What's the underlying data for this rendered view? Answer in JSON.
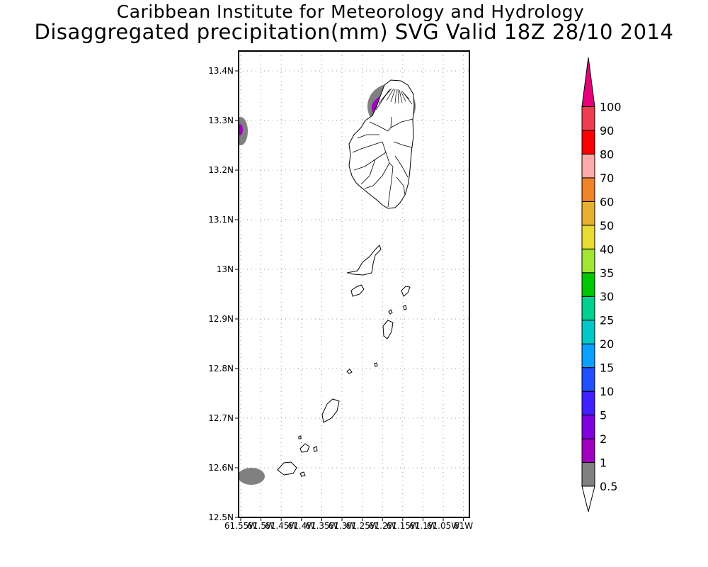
{
  "header": {
    "title": "Caribbean Institute for Meteorology and Hydrology",
    "subtitle": "Disaggregated precipitation(mm) SVG Valid 18Z 28/10 2014"
  },
  "map": {
    "lat_labels": [
      "13.4N",
      "13.3N",
      "13.2N",
      "13.1N",
      "13N",
      "12.9N",
      "12.8N",
      "12.7N",
      "12.6N",
      "12.5N"
    ],
    "lon_labels": [
      "61.55W",
      "61.5W",
      "61.45W",
      "61.4W",
      "61.35W",
      "61.3W",
      "61.25W",
      "61.2W",
      "61.15W",
      "61.1W",
      "61.05W",
      "61W"
    ]
  },
  "colorbar": {
    "levels": [
      "0.5",
      "1",
      "2",
      "5",
      "10",
      "15",
      "20",
      "25",
      "30",
      "35",
      "40",
      "50",
      "60",
      "70",
      "80",
      "90",
      "100"
    ],
    "colors": [
      "#808080",
      "#a000c0",
      "#8000e0",
      "#4020ff",
      "#2050ff",
      "#0aa0ff",
      "#00c8c8",
      "#00d090",
      "#00c800",
      "#a0e632",
      "#e6dc32",
      "#e6af2d",
      "#f08228",
      "#ffaaaa",
      "#ff0000",
      "#f03c50",
      "#e6007a"
    ],
    "under_color": "#ffffff",
    "over_color": "#e6007a"
  }
}
